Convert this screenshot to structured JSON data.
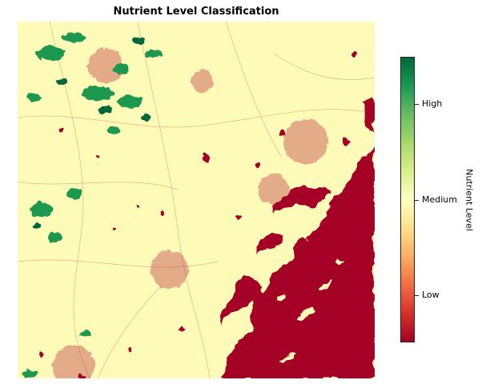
{
  "figure": {
    "title": "Nutrient Level Classification"
  },
  "map": {
    "type": "classified raster",
    "palette": {
      "low": "#a50026",
      "medium": "#fefab8",
      "high": "#006837",
      "high_light": "#1a9850"
    }
  },
  "colorbar": {
    "title": "Nutrient Level",
    "ticks": [
      "High",
      "Medium",
      "Low"
    ],
    "gradient": [
      "#006837",
      "#1a9850",
      "#66bd63",
      "#a6d96a",
      "#d9ef8b",
      "#ffffbf",
      "#fee08b",
      "#fdae61",
      "#f46d43",
      "#d73027",
      "#a50026"
    ]
  }
}
